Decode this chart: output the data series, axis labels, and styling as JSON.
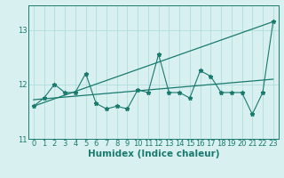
{
  "x": [
    0,
    1,
    2,
    3,
    4,
    5,
    6,
    7,
    8,
    9,
    10,
    11,
    12,
    13,
    14,
    15,
    16,
    17,
    18,
    19,
    20,
    21,
    22,
    23
  ],
  "y_line": [
    11.6,
    11.75,
    12.0,
    11.85,
    11.85,
    12.2,
    11.65,
    11.55,
    11.6,
    11.55,
    11.9,
    11.85,
    12.55,
    11.85,
    11.85,
    11.75,
    12.25,
    12.15,
    11.85,
    11.85,
    11.85,
    11.45,
    11.85,
    13.15
  ],
  "trend_x": [
    0,
    23
  ],
  "trend_y": [
    11.6,
    13.15
  ],
  "xlabel": "Humidex (Indice chaleur)",
  "yticks": [
    11,
    12,
    13
  ],
  "xlim": [
    -0.5,
    23.5
  ],
  "ylim": [
    11.0,
    13.45
  ],
  "line_color": "#1a7a6e",
  "bg_color": "#d8f0f0",
  "grid_color": "#b0dede",
  "tick_label_size": 6,
  "xlabel_size": 7.5
}
